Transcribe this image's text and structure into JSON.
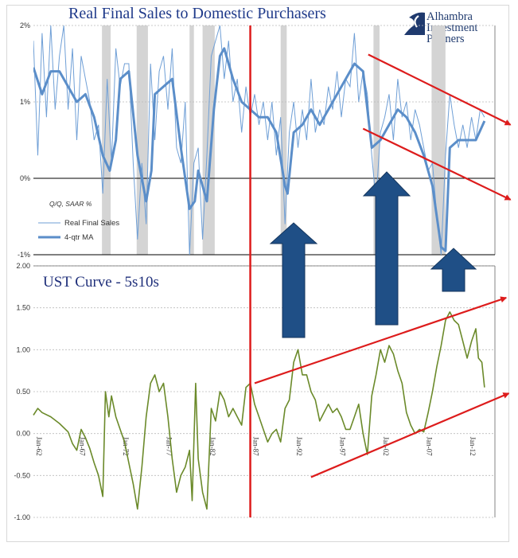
{
  "chart_data": [
    {
      "type": "line",
      "title": "Real Final Sales to Domestic Purchasers",
      "note": "Q/Q, SAAR %",
      "ylim": [
        -1,
        2
      ],
      "y_ticks": [
        "2%",
        "1%",
        "0%",
        "-1%"
      ],
      "legend": [
        "Real Final Sales",
        "4-qtr MA"
      ],
      "colors": {
        "raw": "#6f9fd6",
        "ma": "#5b8ec9",
        "recession": "#d4d4d4"
      },
      "recessions": [
        [
          1969.9,
          1970.9
        ],
        [
          1973.9,
          1975.2
        ],
        [
          1980.0,
          1980.5
        ],
        [
          1981.5,
          1982.9
        ],
        [
          1990.5,
          1991.2
        ],
        [
          2001.2,
          2001.9
        ],
        [
          2007.9,
          2009.5
        ]
      ],
      "series": [
        {
          "name": "4-qtr MA",
          "x": [
            1962,
            1963,
            1964,
            1965,
            1966,
            1967,
            1968,
            1969,
            1970,
            1970.8,
            1971.5,
            1972,
            1973,
            1974,
            1975,
            1975.6,
            1976,
            1977,
            1978,
            1979,
            1980,
            1980.6,
            1981,
            1982,
            1982.8,
            1983.5,
            1984,
            1985,
            1986,
            1987,
            1988,
            1989,
            1990,
            1991,
            1991.3,
            1992,
            1993,
            1994,
            1995,
            1996,
            1997,
            1998,
            1999,
            2000,
            2001,
            2002,
            2003,
            2004,
            2005,
            2006,
            2007,
            2008,
            2009,
            2009.5,
            2010,
            2011,
            2012,
            2013,
            2014
          ],
          "y": [
            1.45,
            1.1,
            1.4,
            1.4,
            1.2,
            1.0,
            1.1,
            0.8,
            0.3,
            0.1,
            0.5,
            1.3,
            1.4,
            0.3,
            -0.3,
            0.1,
            1.1,
            1.2,
            1.3,
            0.4,
            -0.4,
            -0.3,
            0.1,
            -0.3,
            0.9,
            1.6,
            1.7,
            1.3,
            1.0,
            0.9,
            0.8,
            0.8,
            0.6,
            -0.1,
            -0.2,
            0.6,
            0.7,
            0.9,
            0.7,
            0.9,
            1.1,
            1.3,
            1.5,
            1.4,
            0.4,
            0.5,
            0.7,
            0.9,
            0.8,
            0.6,
            0.3,
            -0.1,
            -0.9,
            -0.95,
            0.4,
            0.5,
            0.5,
            0.5,
            0.75
          ]
        },
        {
          "name": "Real Final Sales",
          "x": [
            1962,
            1962.5,
            1963,
            1963.5,
            1964,
            1964.5,
            1965,
            1965.5,
            1966,
            1966.5,
            1967,
            1967.5,
            1968,
            1968.5,
            1969,
            1969.5,
            1970,
            1970.5,
            1971,
            1971.5,
            1972,
            1972.5,
            1973,
            1973.5,
            1974,
            1974.5,
            1975,
            1975.5,
            1976,
            1976.5,
            1977,
            1977.5,
            1978,
            1978.5,
            1979,
            1979.5,
            1980,
            1980.5,
            1981,
            1981.5,
            1982,
            1982.5,
            1983,
            1983.5,
            1984,
            1984.5,
            1985,
            1985.5,
            1986,
            1986.5,
            1987,
            1987.5,
            1988,
            1988.5,
            1989,
            1989.5,
            1990,
            1990.5,
            1991,
            1991.5,
            1992,
            1992.5,
            1993,
            1993.5,
            1994,
            1994.5,
            1995,
            1995.5,
            1996,
            1996.5,
            1997,
            1997.5,
            1998,
            1998.5,
            1999,
            1999.5,
            2000,
            2000.5,
            2001,
            2001.5,
            2002,
            2002.5,
            2003,
            2003.5,
            2004,
            2004.5,
            2005,
            2005.5,
            2006,
            2006.5,
            2007,
            2007.5,
            2008,
            2008.5,
            2009,
            2009.5,
            2010,
            2010.5,
            2011,
            2011.5,
            2012,
            2012.5,
            2013,
            2013.5,
            2014
          ],
          "y": [
            1.8,
            0.3,
            1.9,
            0.8,
            2.0,
            0.9,
            1.6,
            2.0,
            0.9,
            1.7,
            0.5,
            1.6,
            1.3,
            1.0,
            0.5,
            0.7,
            -0.2,
            1.3,
            0.2,
            1.7,
            1.2,
            1.5,
            1.5,
            0.2,
            -0.8,
            0.2,
            -0.6,
            1.5,
            0.5,
            1.4,
            1.6,
            0.9,
            1.7,
            0.4,
            0.2,
            1.0,
            -1.0,
            0.2,
            0.4,
            -0.8,
            0.3,
            1.6,
            1.8,
            2.0,
            1.3,
            1.8,
            1.0,
            1.3,
            0.6,
            1.2,
            0.8,
            1.1,
            0.7,
            1.0,
            0.5,
            1.0,
            0.3,
            0.8,
            -0.6,
            0.6,
            1.0,
            0.4,
            0.9,
            0.5,
            1.3,
            0.6,
            0.9,
            0.7,
            1.2,
            0.9,
            1.4,
            0.8,
            1.3,
            1.2,
            1.9,
            1.0,
            1.4,
            1.1,
            0.3,
            -0.3,
            0.6,
            0.8,
            1.1,
            0.5,
            1.3,
            0.8,
            1.0,
            0.5,
            0.9,
            0.7,
            0.4,
            0.1,
            0.2,
            -0.5,
            -1.0,
            0.3,
            1.1,
            0.7,
            0.4,
            0.7,
            0.4,
            0.8,
            0.5,
            0.9,
            0.8
          ]
        }
      ],
      "annotations": [
        {
          "kind": "line-arrow",
          "from": [
            2000.6,
            1.62
          ],
          "to": [
            2017.0,
            0.7
          ]
        },
        {
          "kind": "line-arrow",
          "from": [
            2000.0,
            0.65
          ],
          "to": [
            2017.0,
            -0.28
          ]
        },
        {
          "kind": "block-arrow",
          "direction": "up"
        },
        {
          "kind": "block-arrow",
          "direction": "up"
        },
        {
          "kind": "block-arrow",
          "direction": "up"
        }
      ]
    },
    {
      "type": "line",
      "title": "UST Curve - 5s10s",
      "ylim": [
        -1.0,
        2.0
      ],
      "y_ticks": [
        "2.00",
        "1.50",
        "1.00",
        "0.50",
        "0.00",
        "-0.50",
        "-1.00"
      ],
      "x_ticks": [
        "Jan-62",
        "Jan-67",
        "Jan-72",
        "Jan-77",
        "Jan-82",
        "Jan-87",
        "Jan-92",
        "Jan-97",
        "Jan-02",
        "Jan-07",
        "Jan-12"
      ],
      "colors": {
        "line": "#6b8a2a",
        "vertical_marker": "#dd1c1c",
        "arrow": "#dd1c1c"
      },
      "vertical_marker_x": 1987.0,
      "series": [
        {
          "name": "5s10s",
          "x": [
            1962,
            1962.5,
            1963,
            1964,
            1965,
            1966,
            1966.5,
            1967,
            1967.5,
            1968,
            1968.5,
            1969,
            1969.5,
            1970,
            1970.3,
            1970.7,
            1971,
            1971.5,
            1972,
            1972.5,
            1973,
            1973.5,
            1974,
            1974.5,
            1975,
            1975.5,
            1976,
            1976.5,
            1977,
            1977.5,
            1978,
            1978.5,
            1979,
            1979.5,
            1980,
            1980.3,
            1980.7,
            1981,
            1981.5,
            1982,
            1982.5,
            1983,
            1983.5,
            1984,
            1984.5,
            1985,
            1985.5,
            1986,
            1986.5,
            1987,
            1987.5,
            1988,
            1988.5,
            1989,
            1989.5,
            1990,
            1990.5,
            1991,
            1991.5,
            1992,
            1992.5,
            1993,
            1993.5,
            1994,
            1994.5,
            1995,
            1995.5,
            1996,
            1996.5,
            1997,
            1997.5,
            1998,
            1998.5,
            1999,
            1999.5,
            2000,
            2000.5,
            2001,
            2001.5,
            2002,
            2002.5,
            2003,
            2003.5,
            2004,
            2004.5,
            2005,
            2005.5,
            2006,
            2006.5,
            2007,
            2007.5,
            2008,
            2008.5,
            2009,
            2009.5,
            2010,
            2010.5,
            2011,
            2011.5,
            2012,
            2012.5,
            2013,
            2013.3,
            2013.7,
            2014
          ],
          "y": [
            0.22,
            0.3,
            0.25,
            0.2,
            0.12,
            0.02,
            -0.12,
            -0.2,
            0.05,
            -0.05,
            -0.18,
            -0.35,
            -0.5,
            -0.75,
            0.5,
            0.2,
            0.45,
            0.2,
            0.05,
            -0.1,
            -0.35,
            -0.6,
            -0.9,
            -0.4,
            0.2,
            0.6,
            0.7,
            0.5,
            0.6,
            0.2,
            -0.3,
            -0.7,
            -0.5,
            -0.4,
            -0.2,
            -0.8,
            0.6,
            -0.3,
            -0.7,
            -0.9,
            0.3,
            0.15,
            0.5,
            0.4,
            0.2,
            0.3,
            0.2,
            0.1,
            0.55,
            0.6,
            0.35,
            0.2,
            0.05,
            -0.1,
            0.0,
            0.05,
            -0.1,
            0.3,
            0.4,
            0.85,
            1.0,
            0.7,
            0.7,
            0.5,
            0.4,
            0.15,
            0.25,
            0.35,
            0.25,
            0.3,
            0.2,
            0.05,
            0.05,
            0.2,
            0.35,
            0.0,
            -0.25,
            0.45,
            0.7,
            1.0,
            0.85,
            1.05,
            0.95,
            0.75,
            0.6,
            0.25,
            0.1,
            0.0,
            0.05,
            0.02,
            0.25,
            0.5,
            0.8,
            1.05,
            1.35,
            1.45,
            1.35,
            1.3,
            1.1,
            0.9,
            1.1,
            1.25,
            0.9,
            0.85,
            0.55
          ]
        }
      ],
      "annotations": [
        {
          "kind": "line-arrow",
          "from": [
            1987.5,
            0.6
          ],
          "to": [
            2016.5,
            1.62
          ]
        },
        {
          "kind": "line-arrow",
          "from": [
            1994.0,
            -0.52
          ],
          "to": [
            2016.8,
            0.48
          ]
        }
      ]
    }
  ]
}
